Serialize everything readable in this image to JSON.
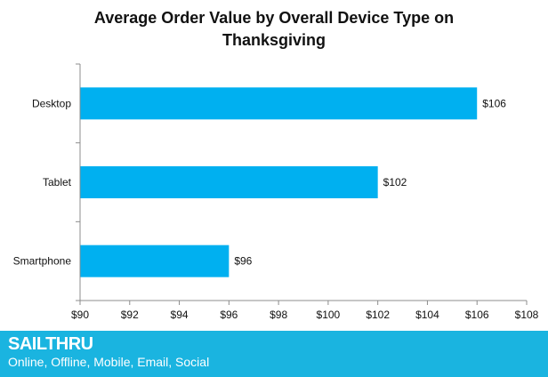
{
  "chart_data": {
    "type": "bar",
    "orientation": "horizontal",
    "title_lines": [
      "Average Order Value by Overall Device Type on",
      "Thanksgiving"
    ],
    "categories": [
      "Desktop",
      "Tablet",
      "Smartphone"
    ],
    "values": [
      106,
      102,
      96
    ],
    "data_labels": [
      "$106",
      "$102",
      "$96"
    ],
    "xlim": [
      90,
      108
    ],
    "xticks": [
      90,
      92,
      94,
      96,
      98,
      100,
      102,
      104,
      106,
      108
    ],
    "xtick_labels": [
      "$90",
      "$92",
      "$94",
      "$96",
      "$98",
      "$100",
      "$102",
      "$104",
      "$106",
      "$108"
    ],
    "bar_color": "#00b0f0",
    "grid": false,
    "legend": "none"
  },
  "footer": {
    "brand": "SAILTHRU",
    "tagline": "Online, Offline, Mobile, Email, Social",
    "background_color": "#1ab4e0"
  }
}
